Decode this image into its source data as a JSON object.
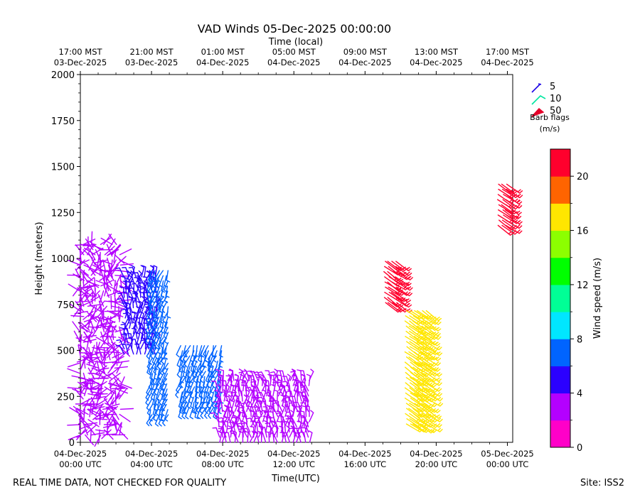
{
  "chart_data": {
    "type": "wind-barb",
    "title": "VAD Winds 05-Dec-2025 00:00:00",
    "top_axis_label": "Time (local)",
    "top_ticks": [
      {
        "time": "17:00 MST",
        "date": "03-Dec-2025",
        "utc_hour": 0
      },
      {
        "time": "21:00 MST",
        "date": "03-Dec-2025",
        "utc_hour": 4
      },
      {
        "time": "01:00 MST",
        "date": "04-Dec-2025",
        "utc_hour": 8
      },
      {
        "time": "05:00 MST",
        "date": "04-Dec-2025",
        "utc_hour": 12
      },
      {
        "time": "09:00 MST",
        "date": "04-Dec-2025",
        "utc_hour": 16
      },
      {
        "time": "13:00 MST",
        "date": "04-Dec-2025",
        "utc_hour": 20
      },
      {
        "time": "17:00 MST",
        "date": "04-Dec-2025",
        "utc_hour": 24
      }
    ],
    "xlabel": "Time(UTC)",
    "x_ticks": [
      {
        "date": "04-Dec-2025",
        "time": "00:00 UTC",
        "utc_hour": 0
      },
      {
        "date": "04-Dec-2025",
        "time": "04:00 UTC",
        "utc_hour": 4
      },
      {
        "date": "04-Dec-2025",
        "time": "08:00 UTC",
        "utc_hour": 8
      },
      {
        "date": "04-Dec-2025",
        "time": "12:00 UTC",
        "utc_hour": 12
      },
      {
        "date": "04-Dec-2025",
        "time": "16:00 UTC",
        "utc_hour": 16
      },
      {
        "date": "04-Dec-2025",
        "time": "20:00 UTC",
        "utc_hour": 20
      },
      {
        "date": "05-Dec-2025",
        "time": "00:00 UTC",
        "utc_hour": 24
      }
    ],
    "xlim": [
      0,
      24.3
    ],
    "ylabel": "Height (meters)",
    "ylim": [
      0,
      2000
    ],
    "y_ticks": [
      0,
      250,
      500,
      750,
      1000,
      1250,
      1500,
      1750,
      2000
    ],
    "legend": {
      "position": "top-right",
      "entries": [
        {
          "label": "5",
          "color": "#1a00e6"
        },
        {
          "label": "10",
          "color": "#00e6a0"
        },
        {
          "label": "50",
          "color": "#e6002a"
        }
      ],
      "caption_line1": "Barb flags",
      "caption_line2": "(m/s)"
    },
    "colorbar": {
      "label": "Wind speed (m/s)",
      "ticks": [
        0,
        4,
        8,
        12,
        16,
        20
      ],
      "range": [
        0,
        22
      ],
      "colors": [
        "#ff00c8",
        "#b400ff",
        "#2b00ff",
        "#0064ff",
        "#00e6ff",
        "#00ff96",
        "#00ff00",
        "#8cff00",
        "#ffe600",
        "#ff6400",
        "#ff002d"
      ]
    },
    "series": [
      {
        "name": "cluster-early-magenta",
        "time_range_h": [
          0.0,
          2.4
        ],
        "height_range_m": [
          40,
          1100
        ],
        "speed_ms": 2
      },
      {
        "name": "cluster-early-purple",
        "time_range_h": [
          2.5,
          4.4
        ],
        "height_range_m": [
          480,
          920
        ],
        "speed_ms": 4
      },
      {
        "name": "cluster-04utc-blue",
        "time_range_h": [
          4.0,
          5.0
        ],
        "height_range_m": [
          150,
          950
        ],
        "speed_ms": 6
      },
      {
        "name": "cluster-06-08utc",
        "time_range_h": [
          5.7,
          8.0
        ],
        "height_range_m": [
          190,
          550
        ],
        "speed_ms": 7
      },
      {
        "name": "cluster-08-13utc",
        "time_range_h": [
          7.8,
          12.9
        ],
        "height_range_m": [
          0,
          350
        ],
        "speed_ms": 3
      },
      {
        "name": "cluster-17utc-red",
        "time_range_h": [
          17.1,
          17.8
        ],
        "height_range_m": [
          760,
          1010
        ],
        "speed_ms": 21
      },
      {
        "name": "cluster-19utc-yellow",
        "time_range_h": [
          18.3,
          19.5
        ],
        "height_range_m": [
          100,
          740
        ],
        "speed_ms": 17
      },
      {
        "name": "cluster-23utc-red",
        "time_range_h": [
          23.5,
          24.0
        ],
        "height_range_m": [
          1180,
          1430
        ],
        "speed_ms": 21
      }
    ]
  },
  "footer": {
    "left": "REAL TIME DATA, NOT CHECKED FOR QUALITY",
    "right": "Site: ISS2"
  }
}
